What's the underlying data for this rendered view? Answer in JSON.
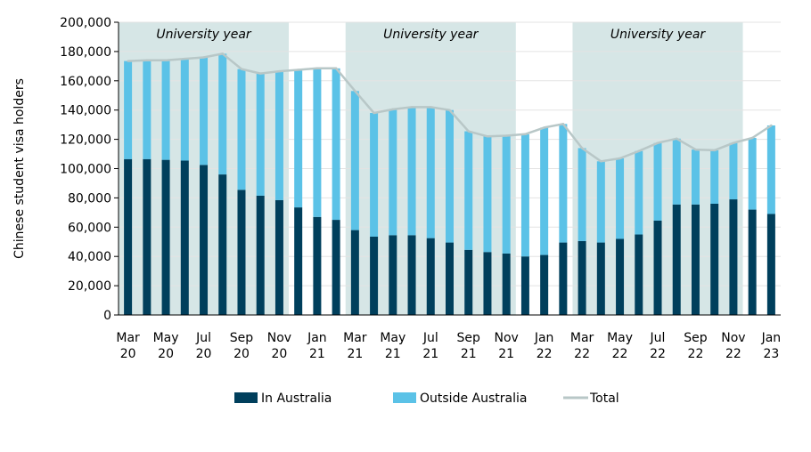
{
  "chart_data": {
    "type": "bar",
    "subtype": "stacked-bar-with-line",
    "title": "",
    "xlabel": "",
    "ylabel": "Chinese student visa holders",
    "ylim": [
      0,
      200000
    ],
    "yticks": [
      0,
      20000,
      40000,
      60000,
      80000,
      100000,
      120000,
      140000,
      160000,
      180000,
      200000
    ],
    "ytick_labels": [
      "0",
      "20,000",
      "40,000",
      "60,000",
      "80,000",
      "100,000",
      "120,000",
      "140,000",
      "160,000",
      "180,000",
      "200,000"
    ],
    "categories": [
      "Mar 20",
      "Apr 20",
      "May 20",
      "Jun 20",
      "Jul 20",
      "Aug 20",
      "Sep 20",
      "Oct 20",
      "Nov 20",
      "Dec 20",
      "Jan 21",
      "Feb 21",
      "Mar 21",
      "Apr 21",
      "May 21",
      "Jun 21",
      "Jul 21",
      "Aug 21",
      "Sep 21",
      "Oct 21",
      "Nov 21",
      "Dec 21",
      "Jan 22",
      "Feb 22",
      "Mar 22",
      "Apr 22",
      "May 22",
      "Jun 22",
      "Jul 22",
      "Aug 22",
      "Sep 22",
      "Oct 22",
      "Nov 22",
      "Dec 22",
      "Jan 23"
    ],
    "xtick_labels": [
      {
        "index": 0,
        "line1": "Mar",
        "line2": "20"
      },
      {
        "index": 2,
        "line1": "May",
        "line2": "20"
      },
      {
        "index": 4,
        "line1": "Jul",
        "line2": "20"
      },
      {
        "index": 6,
        "line1": "Sep",
        "line2": "20"
      },
      {
        "index": 8,
        "line1": "Nov",
        "line2": "20"
      },
      {
        "index": 10,
        "line1": "Jan",
        "line2": "21"
      },
      {
        "index": 12,
        "line1": "Mar",
        "line2": "21"
      },
      {
        "index": 14,
        "line1": "May",
        "line2": "21"
      },
      {
        "index": 16,
        "line1": "Jul",
        "line2": "21"
      },
      {
        "index": 18,
        "line1": "Sep",
        "line2": "21"
      },
      {
        "index": 20,
        "line1": "Nov",
        "line2": "21"
      },
      {
        "index": 22,
        "line1": "Jan",
        "line2": "22"
      },
      {
        "index": 24,
        "line1": "Mar",
        "line2": "22"
      },
      {
        "index": 26,
        "line1": "May",
        "line2": "22"
      },
      {
        "index": 28,
        "line1": "Jul",
        "line2": "22"
      },
      {
        "index": 30,
        "line1": "Sep",
        "line2": "22"
      },
      {
        "index": 32,
        "line1": "Nov",
        "line2": "22"
      },
      {
        "index": 34,
        "line1": "Jan",
        "line2": "23"
      }
    ],
    "series": [
      {
        "name": "In Australia",
        "type": "bar",
        "color": "#003f5c",
        "values": [
          106500,
          106500,
          106000,
          105500,
          102500,
          96000,
          85500,
          81500,
          78500,
          73500,
          67000,
          65000,
          58000,
          53500,
          54500,
          54500,
          52500,
          49500,
          44500,
          43000,
          42000,
          40000,
          41000,
          49500,
          50500,
          49500,
          52000,
          55000,
          64500,
          75500,
          75500,
          76000,
          79000,
          72000,
          69000
        ]
      },
      {
        "name": "Outside Australia",
        "type": "bar",
        "color": "#5bc2e7",
        "values": [
          67000,
          67500,
          68000,
          69500,
          73500,
          82500,
          82500,
          83500,
          88000,
          94000,
          101500,
          103500,
          95000,
          84500,
          86000,
          87500,
          89500,
          90500,
          81000,
          79000,
          80500,
          83500,
          87000,
          81000,
          63500,
          55500,
          55000,
          57000,
          53000,
          45000,
          37500,
          36500,
          38500,
          49000,
          60500
        ]
      },
      {
        "name": "Total",
        "type": "line",
        "color": "#b8c7c7",
        "values": [
          173500,
          174000,
          174000,
          175000,
          176000,
          178500,
          168000,
          165000,
          166500,
          167500,
          168500,
          168500,
          153000,
          138000,
          140500,
          142000,
          142000,
          140000,
          125500,
          122000,
          122500,
          123500,
          128000,
          130500,
          114000,
          105000,
          107000,
          112000,
          117500,
          120500,
          113000,
          112500,
          117500,
          121000,
          129500
        ]
      }
    ],
    "shaded_bands": [
      {
        "start": "Mar 20",
        "end": "Nov 20",
        "label": "University year"
      },
      {
        "start": "Mar 21",
        "end": "Nov 21",
        "label": "University year"
      },
      {
        "start": "Mar 22",
        "end": "Nov 22",
        "label": "University year"
      }
    ],
    "band_color": "#d6e6e6",
    "gridline_color": "#e3e3e3",
    "legend": {
      "position": "bottom",
      "items": [
        {
          "label": "In Australia",
          "color": "#003f5c",
          "kind": "box"
        },
        {
          "label": "Outside Australia",
          "color": "#5bc2e7",
          "kind": "box"
        },
        {
          "label": "Total",
          "color": "#b8c7c7",
          "kind": "line"
        }
      ]
    }
  }
}
